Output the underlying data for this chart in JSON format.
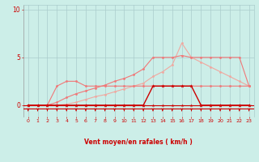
{
  "x": [
    0,
    1,
    2,
    3,
    4,
    5,
    6,
    7,
    8,
    9,
    10,
    11,
    12,
    13,
    14,
    15,
    16,
    17,
    18,
    19,
    20,
    21,
    22,
    23
  ],
  "line_salmon_flat": [
    0,
    0,
    0,
    2,
    2.5,
    2.5,
    2,
    2,
    2,
    2,
    2,
    2,
    2,
    2,
    2,
    2,
    2,
    2,
    2,
    2,
    2,
    2,
    2,
    2
  ],
  "line_salmon_rise": [
    0,
    0,
    0,
    0.3,
    0.8,
    1.2,
    1.5,
    1.8,
    2.1,
    2.5,
    2.8,
    3.2,
    3.8,
    5,
    5,
    5,
    5.2,
    5,
    5,
    5,
    5,
    5,
    5,
    2
  ],
  "line_light_rise": [
    0,
    0,
    0,
    0,
    0.1,
    0.3,
    0.6,
    0.9,
    1.1,
    1.4,
    1.7,
    2.0,
    2.3,
    3.0,
    3.5,
    4.2,
    6.5,
    5.0,
    4.5,
    4.0,
    3.5,
    3.0,
    2.5,
    2.0
  ],
  "line_dark_red": [
    0,
    0,
    0,
    0,
    0,
    0,
    0,
    0,
    0,
    0,
    0,
    0,
    0,
    2,
    2,
    2,
    2,
    2,
    0,
    0,
    0,
    0,
    0,
    0
  ],
  "line_zero": [
    0,
    0,
    0,
    0,
    0,
    0,
    0,
    0,
    0,
    0,
    0,
    0,
    0,
    0,
    0,
    0,
    0,
    0,
    0,
    0,
    0,
    0,
    0,
    0
  ],
  "bg_color": "#cceee8",
  "grid_color": "#aacccc",
  "line_salmon_flat_color": "#f07878",
  "line_salmon_rise_color": "#f07878",
  "line_light_rise_color": "#f0a8a0",
  "line_dark_red_color": "#cc0000",
  "line_zero_color": "#cc0000",
  "axis_line_color": "#cc0000",
  "text_color": "#cc0000",
  "xlabel": "Vent moyen/en rafales ( km/h )",
  "yticks": [
    0,
    5,
    10
  ],
  "xticks": [
    0,
    1,
    2,
    3,
    4,
    5,
    6,
    7,
    8,
    9,
    10,
    11,
    12,
    13,
    14,
    15,
    16,
    17,
    18,
    19,
    20,
    21,
    22,
    23
  ],
  "ylim": [
    -1.2,
    10.5
  ],
  "xlim": [
    -0.5,
    23.5
  ]
}
